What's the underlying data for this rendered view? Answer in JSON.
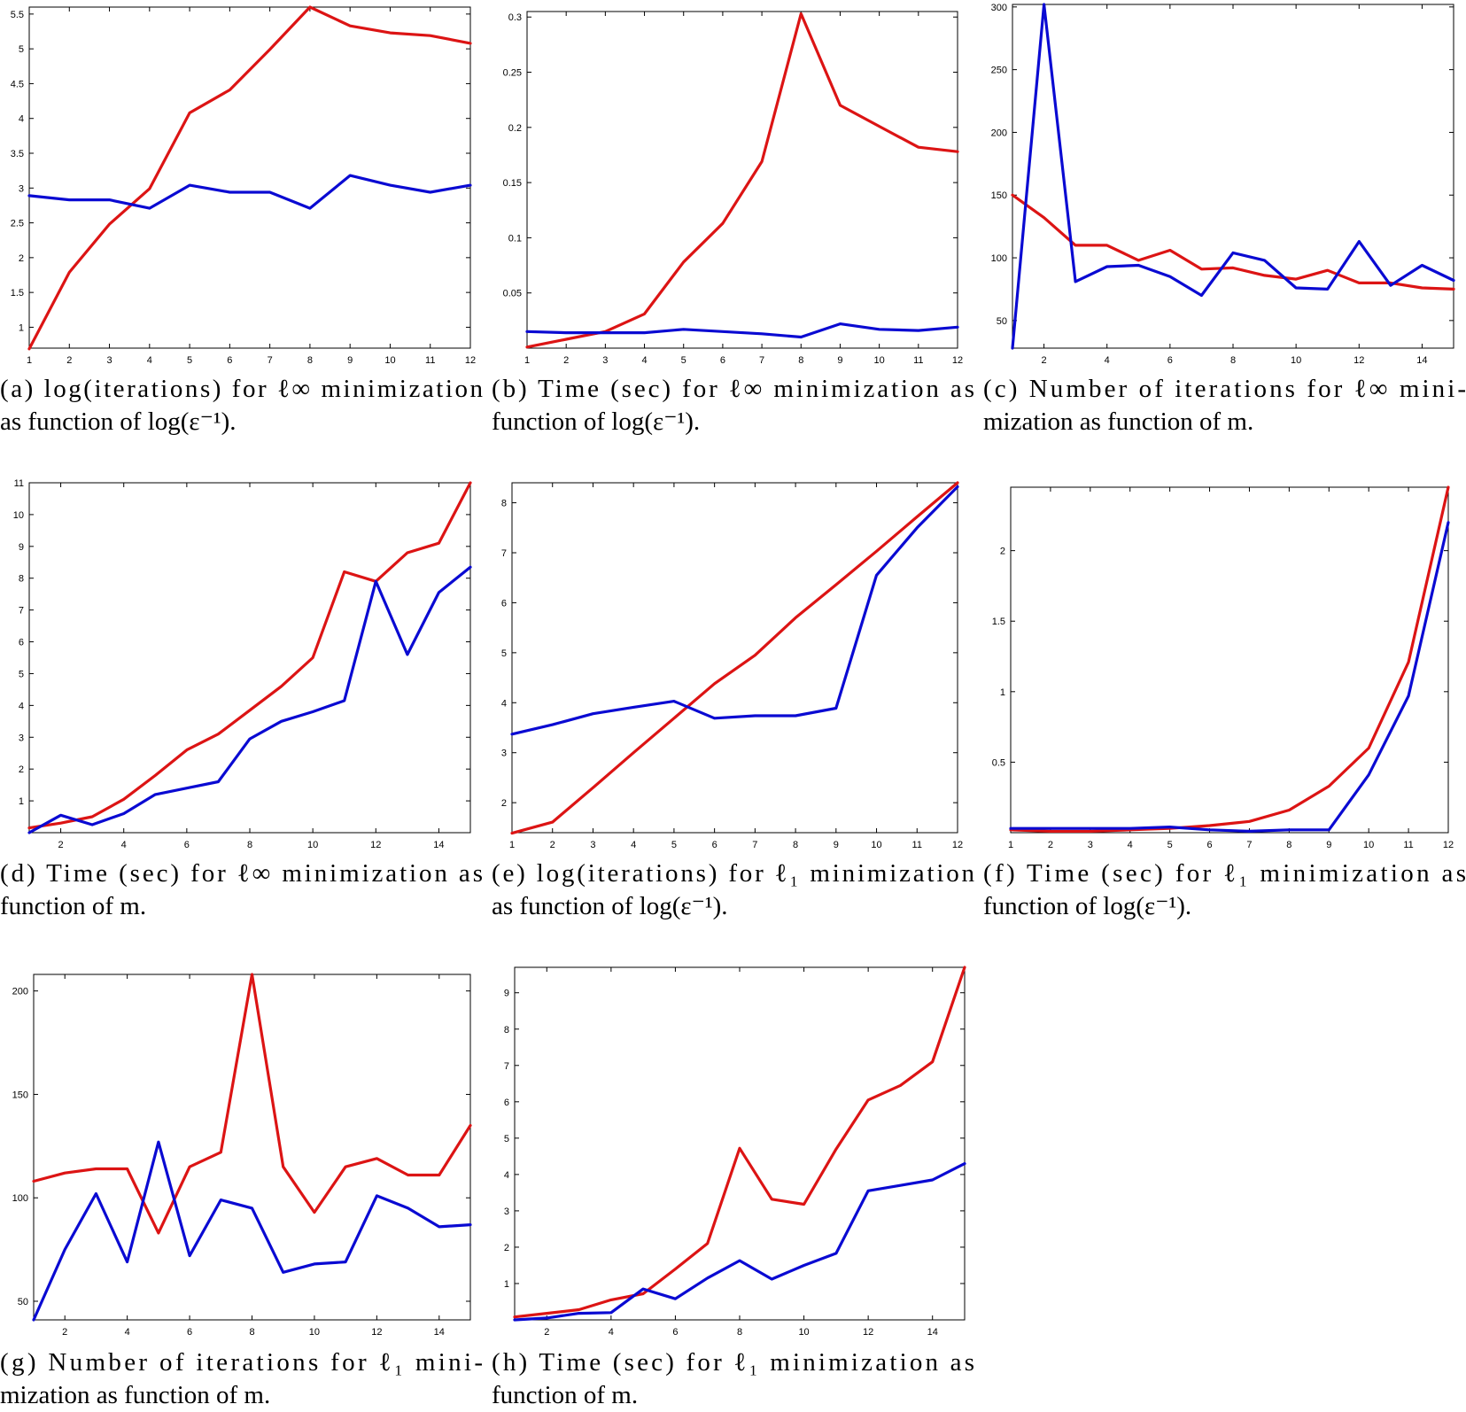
{
  "colors": {
    "red_series": "#dc1414",
    "blue_series": "#0a0ad2"
  },
  "chart_data": [
    {
      "id": "a",
      "type": "line",
      "caption": [
        "(a) log(iterations) for ℓ∞ minimization",
        "as function of log(ε⁻¹)."
      ],
      "xlim": [
        1,
        12
      ],
      "ylim": [
        0.7,
        5.6
      ],
      "xticks": [
        1,
        2,
        3,
        4,
        5,
        6,
        7,
        8,
        9,
        10,
        11,
        12
      ],
      "yticks": [
        1,
        1.5,
        2,
        2.5,
        3,
        3.5,
        4,
        4.5,
        5,
        5.5
      ],
      "x": [
        1,
        2,
        3,
        4,
        5,
        6,
        7,
        8,
        9,
        10,
        11,
        12
      ],
      "series": [
        {
          "color": "red",
          "values": [
            0.69,
            1.79,
            2.48,
            2.99,
            4.08,
            4.41,
            4.99,
            5.6,
            5.33,
            5.23,
            5.19,
            5.08
          ]
        },
        {
          "color": "blue",
          "values": [
            2.89,
            2.83,
            2.83,
            2.71,
            3.04,
            2.94,
            2.94,
            2.71,
            3.18,
            3.04,
            2.94,
            3.04
          ]
        }
      ]
    },
    {
      "id": "b",
      "type": "line",
      "caption": [
        "(b) Time (sec) for ℓ∞ minimization as",
        "function of log(ε⁻¹)."
      ],
      "xlim": [
        1,
        12
      ],
      "ylim": [
        0,
        0.305
      ],
      "xticks": [
        1,
        2,
        3,
        4,
        5,
        6,
        7,
        8,
        9,
        10,
        11,
        12
      ],
      "yticks": [
        0.05,
        0.1,
        0.15,
        0.2,
        0.25,
        0.3
      ],
      "x": [
        1,
        2,
        3,
        4,
        5,
        6,
        7,
        8,
        9,
        10,
        11,
        12
      ],
      "series": [
        {
          "color": "red",
          "values": [
            0.001,
            0.008,
            0.015,
            0.031,
            0.078,
            0.113,
            0.169,
            0.303,
            0.22,
            0.201,
            0.182,
            0.178
          ]
        },
        {
          "color": "blue",
          "values": [
            0.015,
            0.014,
            0.014,
            0.014,
            0.017,
            0.015,
            0.013,
            0.01,
            0.022,
            0.017,
            0.016,
            0.019
          ]
        }
      ]
    },
    {
      "id": "c",
      "type": "line",
      "caption": [
        "(c) Number of iterations for ℓ∞ mini-",
        "mization as function of m."
      ],
      "xlim": [
        1,
        15
      ],
      "ylim": [
        28,
        302
      ],
      "xticks": [
        2,
        4,
        6,
        8,
        10,
        12,
        14
      ],
      "yticks": [
        50,
        100,
        150,
        200,
        250,
        300
      ],
      "x": [
        1,
        2,
        3,
        4,
        5,
        6,
        7,
        8,
        9,
        10,
        11,
        12,
        13,
        14,
        15
      ],
      "series": [
        {
          "color": "red",
          "values": [
            150,
            132,
            110,
            110,
            98,
            106,
            91,
            92,
            86,
            83,
            90,
            80,
            80,
            76,
            75
          ]
        },
        {
          "color": "blue",
          "values": [
            28,
            302,
            81,
            93,
            94,
            85,
            70,
            104,
            98,
            76,
            75,
            113,
            78,
            94,
            82
          ]
        }
      ]
    },
    {
      "id": "d",
      "type": "line",
      "caption": [
        "(d) Time (sec) for ℓ∞ minimization as",
        "function of m."
      ],
      "xlim": [
        1,
        15
      ],
      "ylim": [
        0,
        11
      ],
      "xticks": [
        2,
        4,
        6,
        8,
        10,
        12,
        14
      ],
      "yticks": [
        1,
        2,
        3,
        4,
        5,
        6,
        7,
        8,
        9,
        10,
        11
      ],
      "x": [
        1,
        2,
        3,
        4,
        5,
        6,
        7,
        8,
        9,
        10,
        11,
        12,
        13,
        14,
        15
      ],
      "series": [
        {
          "color": "red",
          "values": [
            0.15,
            0.3,
            0.5,
            1.05,
            1.8,
            2.6,
            3.1,
            3.85,
            4.6,
            5.5,
            8.2,
            7.9,
            8.8,
            9.1,
            11.0
          ]
        },
        {
          "color": "blue",
          "values": [
            0.0,
            0.55,
            0.25,
            0.6,
            1.2,
            1.4,
            1.6,
            2.95,
            3.5,
            3.8,
            4.15,
            7.9,
            5.6,
            7.55,
            8.35
          ]
        }
      ]
    },
    {
      "id": "e",
      "type": "line",
      "caption": [
        "(e) log(iterations) for ℓ₁ minimization",
        "as function of log(ε⁻¹)."
      ],
      "xlim": [
        1,
        12
      ],
      "ylim": [
        1.4,
        8.4
      ],
      "xticks": [
        1,
        2,
        3,
        4,
        5,
        6,
        7,
        8,
        9,
        10,
        11,
        12
      ],
      "yticks": [
        2,
        3,
        4,
        5,
        6,
        7,
        8
      ],
      "x": [
        1,
        2,
        3,
        4,
        5,
        6,
        7,
        8,
        9,
        10,
        11,
        12
      ],
      "series": [
        {
          "color": "red",
          "values": [
            1.39,
            1.61,
            2.3,
            3.0,
            3.69,
            4.38,
            4.95,
            5.7,
            6.36,
            7.03,
            7.72,
            8.4
          ]
        },
        {
          "color": "blue",
          "values": [
            3.37,
            3.56,
            3.78,
            3.91,
            4.03,
            3.69,
            3.74,
            3.74,
            3.89,
            6.55,
            7.5,
            8.32
          ]
        }
      ]
    },
    {
      "id": "f",
      "type": "line",
      "caption": [
        "(f) Time (sec) for ℓ₁ minimization as",
        "function of log(ε⁻¹)."
      ],
      "xlim": [
        1,
        12
      ],
      "ylim": [
        0,
        2.45
      ],
      "xticks": [
        1,
        2,
        3,
        4,
        5,
        6,
        7,
        8,
        9,
        10,
        11,
        12
      ],
      "yticks": [
        0.5,
        1,
        1.5,
        2
      ],
      "x": [
        1,
        2,
        3,
        4,
        5,
        6,
        7,
        8,
        9,
        10,
        11,
        12
      ],
      "series": [
        {
          "color": "red",
          "values": [
            0.02,
            0.01,
            0.01,
            0.02,
            0.03,
            0.05,
            0.08,
            0.16,
            0.33,
            0.6,
            1.21,
            2.45
          ]
        },
        {
          "color": "blue",
          "values": [
            0.03,
            0.03,
            0.03,
            0.03,
            0.04,
            0.02,
            0.01,
            0.02,
            0.02,
            0.41,
            0.97,
            2.2
          ]
        }
      ]
    },
    {
      "id": "g",
      "type": "line",
      "caption": [
        "(g) Number of iterations for ℓ₁ mini-",
        "mization as function of m."
      ],
      "xlim": [
        1,
        15
      ],
      "ylim": [
        41,
        208
      ],
      "xticks": [
        2,
        4,
        6,
        8,
        10,
        12,
        14
      ],
      "yticks": [
        50,
        100,
        150,
        200
      ],
      "x": [
        1,
        2,
        3,
        4,
        5,
        6,
        7,
        8,
        9,
        10,
        11,
        12,
        13,
        14,
        15
      ],
      "series": [
        {
          "color": "red",
          "values": [
            108,
            112,
            114,
            114,
            83,
            115,
            122,
            208,
            115,
            93,
            115,
            119,
            111,
            111,
            135
          ]
        },
        {
          "color": "blue",
          "values": [
            41,
            75,
            102,
            69,
            127,
            72,
            99,
            95,
            64,
            68,
            69,
            101,
            95,
            86,
            87
          ]
        }
      ]
    },
    {
      "id": "h",
      "type": "line",
      "caption": [
        "(h) Time (sec) for ℓ₁ minimization as",
        "function of m."
      ],
      "xlim": [
        1,
        15
      ],
      "ylim": [
        0,
        9.7
      ],
      "xticks": [
        2,
        4,
        6,
        8,
        10,
        12,
        14
      ],
      "yticks": [
        1,
        2,
        3,
        4,
        5,
        6,
        7,
        8,
        9
      ],
      "x": [
        1,
        2,
        3,
        4,
        5,
        6,
        7,
        8,
        9,
        10,
        11,
        12,
        13,
        14,
        15
      ],
      "series": [
        {
          "color": "red",
          "values": [
            0.08,
            0.18,
            0.28,
            0.55,
            0.72,
            1.4,
            2.1,
            4.72,
            3.32,
            3.18,
            4.7,
            6.05,
            6.45,
            7.1,
            9.7
          ]
        },
        {
          "color": "blue",
          "values": [
            0.0,
            0.05,
            0.18,
            0.2,
            0.85,
            0.58,
            1.15,
            1.63,
            1.12,
            1.5,
            1.83,
            3.55,
            3.7,
            3.85,
            4.3
          ]
        }
      ]
    }
  ]
}
